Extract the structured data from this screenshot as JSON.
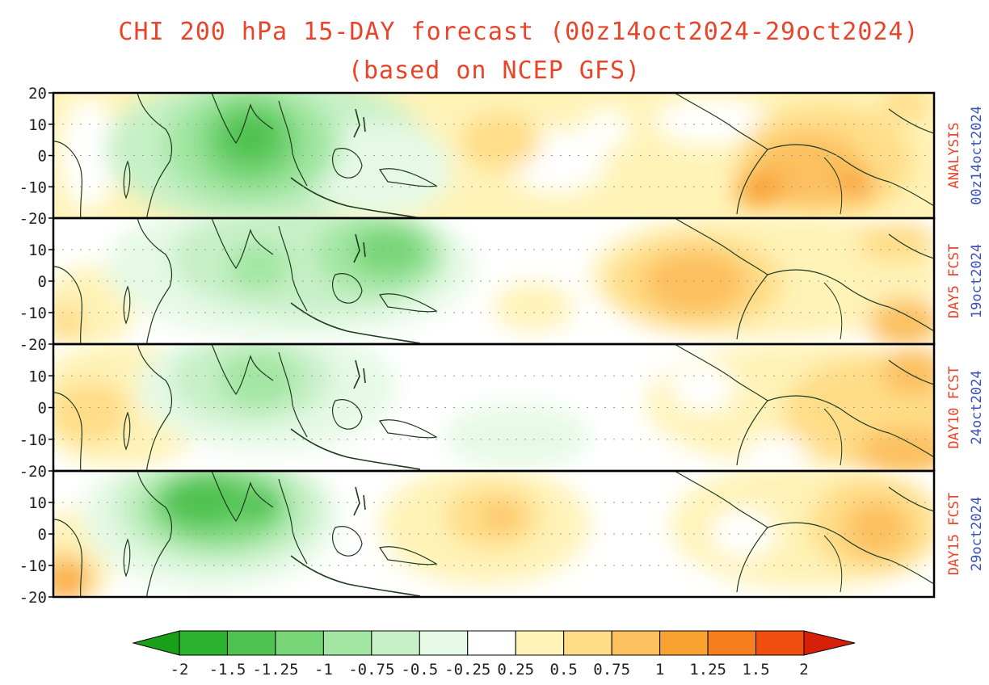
{
  "title": {
    "line1": "CHI 200 hPa 15-DAY forecast (00z14oct2024-29oct2024)",
    "line2": "(based on NCEP GFS)"
  },
  "colors": {
    "title": "#e8442a",
    "panel_label": "#e8442a",
    "date_label": "#3a4fb8",
    "coast": "#1f3a1f",
    "frame": "#000000",
    "grid": "#9a9a9a"
  },
  "yaxis": {
    "ticks": [
      "20",
      "10",
      "0",
      "-10",
      "-20"
    ],
    "values": [
      20,
      10,
      0,
      -10,
      -20
    ]
  },
  "panels": [
    {
      "label": "ANALYSIS",
      "date": "00z14oct2024"
    },
    {
      "label": "DAY5 FCST",
      "date": "19oct2024"
    },
    {
      "label": "DAY10 FCST",
      "date": "24oct2024"
    },
    {
      "label": "DAY15 FCST",
      "date": "29oct2024"
    }
  ],
  "colorbar": {
    "tick_labels": [
      "-2",
      "-1.5",
      "-1.25",
      "-1",
      "-0.75",
      "-0.5",
      "-0.25",
      "0.25",
      "0.5",
      "0.75",
      "1",
      "1.25",
      "1.5",
      "2"
    ],
    "colors": [
      "#18a018",
      "#2db22d",
      "#4fc24f",
      "#78d678",
      "#a3e6a3",
      "#c7f0c7",
      "#e6f9e6",
      "#ffffff",
      "#fff3b8",
      "#ffdd88",
      "#fcc05e",
      "#f9a232",
      "#f67e1c",
      "#f04e0e",
      "#d6200a"
    ]
  }
}
